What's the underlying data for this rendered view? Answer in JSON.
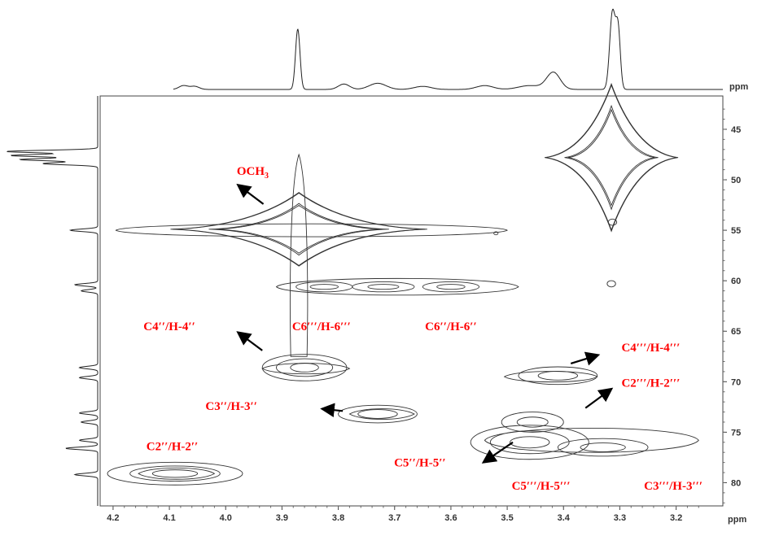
{
  "chart_data": {
    "type": "contour",
    "x_axis": {
      "unit": "ppm",
      "reversed": true,
      "ticks": [
        "4.2",
        "4.1",
        "4.0",
        "3.9",
        "3.8",
        "3.7",
        "3.6",
        "3.5",
        "3.4",
        "3.3",
        "3.2"
      ],
      "range": [
        4.223,
        3.117
      ]
    },
    "y_axis": {
      "unit": "ppm",
      "reversed": true,
      "ticks": [
        "45",
        "50",
        "55",
        "60",
        "65",
        "70",
        "75",
        "80"
      ],
      "range": [
        41.7,
        82.3
      ]
    },
    "cross_peaks": [
      {
        "id": "p-48",
        "x": 3.315,
        "y": 47.8,
        "sx": 0.013,
        "sy": 0.8,
        "k": 4,
        "star": true
      },
      {
        "id": "p-55",
        "x": 3.87,
        "y": 54.9,
        "sx": 0.025,
        "sy": 0.4,
        "k": 4,
        "star": true
      },
      {
        "id": "p-60a",
        "x": 3.825,
        "y": 60.6,
        "sx": 0.02,
        "sy": 0.2,
        "k": 2
      },
      {
        "id": "p-60b",
        "x": 3.72,
        "y": 60.6,
        "sx": 0.022,
        "sy": 0.2,
        "k": 2
      },
      {
        "id": "p-60c",
        "x": 3.6,
        "y": 60.6,
        "sx": 0.02,
        "sy": 0.2,
        "k": 2
      },
      {
        "id": "p-68.5",
        "x": 3.86,
        "y": 68.6,
        "sx": 0.02,
        "sy": 0.35,
        "k": 3
      },
      {
        "id": "p-69.5",
        "x": 3.41,
        "y": 69.4,
        "sx": 0.028,
        "sy": 0.35,
        "k": 2
      },
      {
        "id": "p-73",
        "x": 3.73,
        "y": 73.2,
        "sx": 0.028,
        "sy": 0.35,
        "k": 2
      },
      {
        "id": "p-74",
        "x": 3.455,
        "y": 74.0,
        "sx": 0.022,
        "sy": 0.4,
        "k": 2
      },
      {
        "id": "p-76",
        "x": 3.46,
        "y": 76.0,
        "sx": 0.028,
        "sy": 0.45,
        "k": 3
      },
      {
        "id": "p-76.5",
        "x": 3.33,
        "y": 76.5,
        "sx": 0.032,
        "sy": 0.35,
        "k": 2
      },
      {
        "id": "p-79",
        "x": 4.09,
        "y": 79.1,
        "sx": 0.032,
        "sy": 0.3,
        "k": 3
      },
      {
        "id": "p-54.2",
        "x": 3.313,
        "y": 54.2,
        "sx": 0.006,
        "sy": 0.25,
        "k": 1
      },
      {
        "id": "p-60.3",
        "x": 3.315,
        "y": 60.3,
        "sx": 0.006,
        "sy": 0.25,
        "k": 1
      },
      {
        "id": "p-55.3",
        "x": 3.52,
        "y": 55.3,
        "sx": 0.003,
        "sy": 0.12,
        "k": 1
      }
    ],
    "top_projection_peaks": [
      {
        "x": 3.872,
        "h": 0.78,
        "w": 0.004
      },
      {
        "x": 3.313,
        "h": 1.0,
        "w": 0.005
      },
      {
        "x": 3.303,
        "h": 0.75,
        "w": 0.004
      },
      {
        "x": 3.418,
        "h": 0.22,
        "w": 0.012
      },
      {
        "x": 4.075,
        "h": 0.05,
        "w": 0.008
      },
      {
        "x": 4.055,
        "h": 0.04,
        "w": 0.008
      },
      {
        "x": 3.79,
        "h": 0.07,
        "w": 0.01
      },
      {
        "x": 3.73,
        "h": 0.08,
        "w": 0.015
      },
      {
        "x": 3.65,
        "h": 0.04,
        "w": 0.015
      },
      {
        "x": 3.54,
        "h": 0.05,
        "w": 0.015
      },
      {
        "x": 3.46,
        "h": 0.05,
        "w": 0.02
      }
    ],
    "left_projection_peaks": [
      {
        "y": 47.2,
        "h": 1.0
      },
      {
        "y": 47.6,
        "h": 0.95
      },
      {
        "y": 48.0,
        "h": 0.85
      },
      {
        "y": 48.4,
        "h": 0.6
      },
      {
        "y": 55.0,
        "h": 0.3
      },
      {
        "y": 60.4,
        "h": 0.25
      },
      {
        "y": 61.0,
        "h": 0.18
      },
      {
        "y": 68.6,
        "h": 0.2
      },
      {
        "y": 69.6,
        "h": 0.2
      },
      {
        "y": 73.1,
        "h": 0.2
      },
      {
        "y": 74.0,
        "h": 0.18
      },
      {
        "y": 75.8,
        "h": 0.2
      },
      {
        "y": 76.6,
        "h": 0.35
      },
      {
        "y": 79.2,
        "h": 0.25
      }
    ],
    "annotations": [
      {
        "id": "ann-och3",
        "main": "OCH",
        "sub": "3",
        "x": 3.952,
        "y": 49.5,
        "arrow": [
          3.933,
          52.4,
          3.976,
          50.6
        ]
      },
      {
        "id": "ann-c4pp",
        "text": "C4′′/H-4′′",
        "x": 4.1,
        "y": 64.9,
        "arrow": [
          3.935,
          66.9,
          3.976,
          65.2
        ]
      },
      {
        "id": "ann-c6ppp",
        "text": "C6′′′/H-6′′′",
        "x": 3.83,
        "y": 64.9
      },
      {
        "id": "ann-c6pp",
        "text": "C6′′/H-6′′",
        "x": 3.6,
        "y": 64.9
      },
      {
        "id": "ann-c4ppp",
        "text": "C4′′′/H-4′′′",
        "x": 3.245,
        "y": 67.0,
        "arrow": [
          3.387,
          68.2,
          3.341,
          67.4
        ]
      },
      {
        "id": "ann-c2ppp",
        "text": "C2′′′/H-2′′′",
        "x": 3.245,
        "y": 70.5,
        "arrow": [
          3.361,
          72.6,
          3.317,
          70.8
        ]
      },
      {
        "id": "ann-c3pp",
        "text": "C3′′/H-3′′",
        "x": 3.99,
        "y": 72.8,
        "arrow": [
          3.792,
          72.9,
          3.826,
          72.7
        ]
      },
      {
        "id": "ann-c2pp",
        "text": "C2′′/H-2′′",
        "x": 4.095,
        "y": 76.8
      },
      {
        "id": "ann-c5pp",
        "text": "C5′′/H-5′′",
        "x": 3.655,
        "y": 78.4,
        "arrow": [
          3.49,
          76.0,
          3.54,
          77.9
        ]
      },
      {
        "id": "ann-c5ppp",
        "text": "C5′′′/H-5′′′",
        "x": 3.44,
        "y": 80.7
      },
      {
        "id": "ann-c3ppp",
        "text": "C3′′′/H-3′′′",
        "x": 3.205,
        "y": 80.7
      }
    ]
  }
}
